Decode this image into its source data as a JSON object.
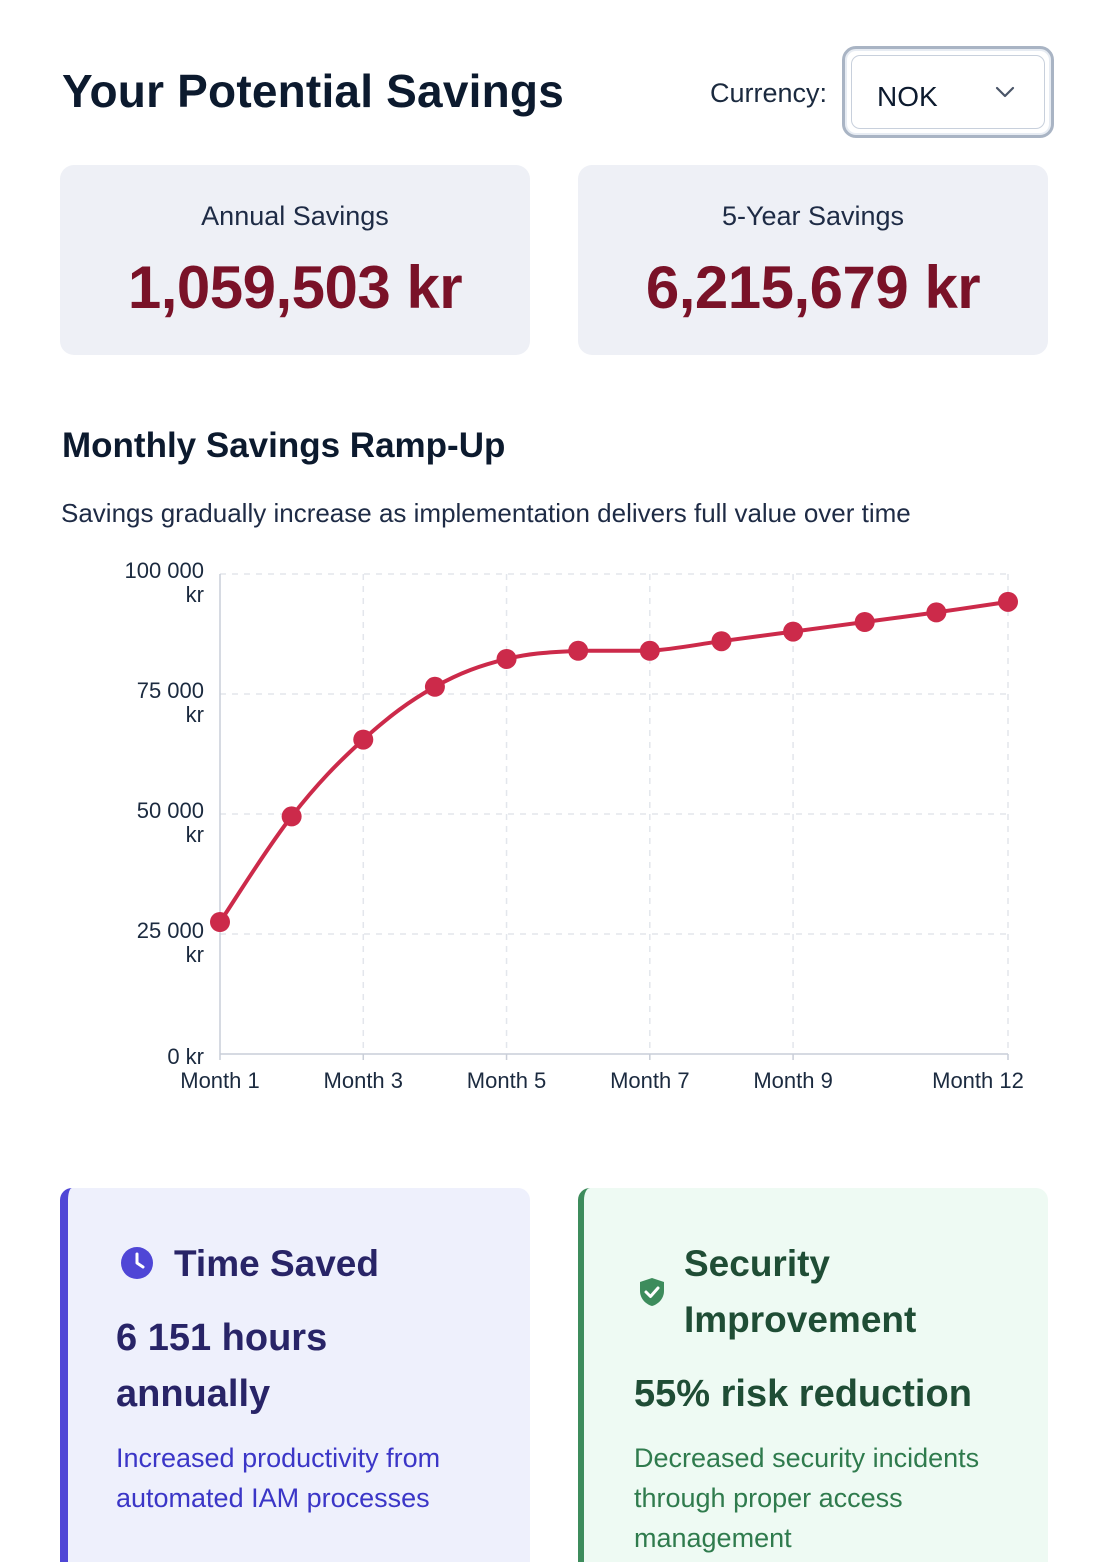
{
  "header": {
    "title": "Your Potential Savings",
    "currency_label": "Currency:",
    "currency_value": "NOK"
  },
  "stats": {
    "annual": {
      "label": "Annual Savings",
      "value": "1,059,503 kr"
    },
    "five_year": {
      "label": "5-Year Savings",
      "value": "6,215,679 kr"
    }
  },
  "section": {
    "title": "Monthly Savings Ramp-Up",
    "subtitle": "Savings gradually increase as implementation delivers full value over time"
  },
  "chart_data": {
    "type": "line",
    "title": "",
    "xlabel": "",
    "ylabel": "",
    "ylim": [
      0,
      100000
    ],
    "grid": true,
    "y_ticks": [
      {
        "value": 0,
        "line1": "0 kr",
        "line2": ""
      },
      {
        "value": 25000,
        "line1": "25 000",
        "line2": "kr"
      },
      {
        "value": 50000,
        "line1": "50 000",
        "line2": "kr"
      },
      {
        "value": 75000,
        "line1": "75 000",
        "line2": "kr"
      },
      {
        "value": 100000,
        "line1": "100 000",
        "line2": "kr"
      }
    ],
    "categories": [
      "Month 1",
      "Month 2",
      "Month 3",
      "Month 4",
      "Month 5",
      "Month 6",
      "Month 7",
      "Month 8",
      "Month 9",
      "Month 10",
      "Month 11",
      "Month 12"
    ],
    "x_tick_labels": [
      "Month 1",
      "Month 3",
      "Month 5",
      "Month 7",
      "Month 9",
      "Month 12"
    ],
    "series": [
      {
        "name": "",
        "color": "#cc2a4a",
        "values": [
          27500,
          49500,
          65500,
          76500,
          82300,
          84000,
          84000,
          86000,
          88000,
          90000,
          92000,
          94200
        ]
      }
    ]
  },
  "metrics": {
    "time": {
      "icon": "clock-icon",
      "title": "Time Saved",
      "value": "6 151 hours annually",
      "description": "Increased productivity from automated IAM processes",
      "accent": "#4f46d6"
    },
    "security": {
      "icon": "shield-check-icon",
      "title": "Security Improvement",
      "value": "55% risk reduction",
      "description": "Decreased security incidents through proper access management",
      "accent": "#3d8c5c"
    }
  }
}
